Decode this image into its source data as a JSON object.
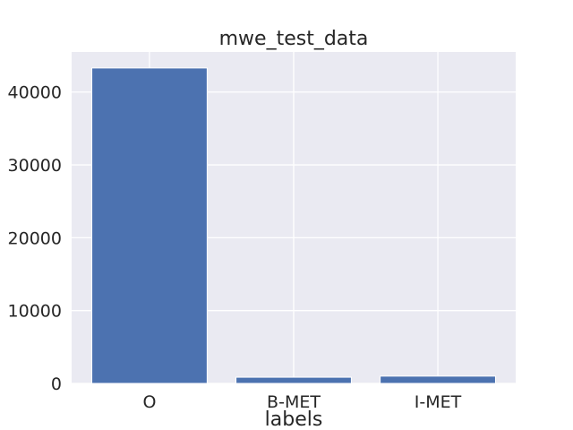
{
  "chart_data": {
    "type": "bar",
    "title": "mwe_test_data",
    "xlabel": "labels",
    "ylabel": "",
    "categories": [
      "O",
      "B-MET",
      "I-MET"
    ],
    "values": [
      43300,
      850,
      1000
    ],
    "ylim": [
      0,
      45500
    ],
    "yticks": [
      0,
      10000,
      20000,
      30000,
      40000
    ],
    "ytick_labels": [
      "0",
      "10000",
      "20000",
      "30000",
      "40000"
    ],
    "grid": true,
    "style": "seaborn-darkgrid",
    "colors": {
      "bar": "#4c72b0",
      "axes_background": "#eaeaf2",
      "grid": "#ffffff",
      "text": "#262626"
    }
  }
}
